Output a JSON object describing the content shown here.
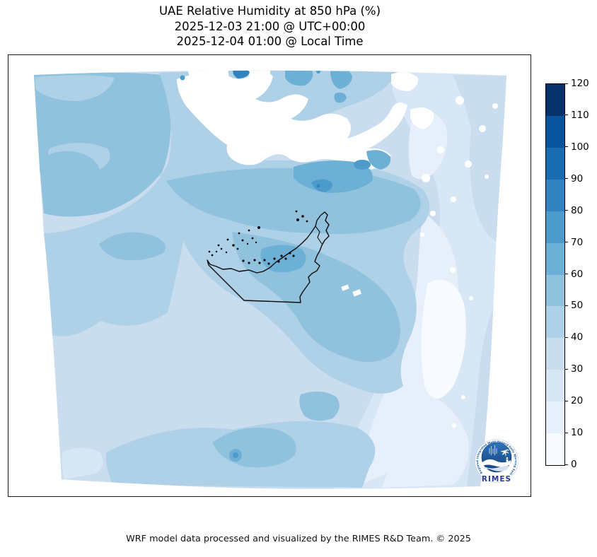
{
  "title": {
    "line1": "UAE Relative Humidity at 850 hPa (%)",
    "line2": "2025-12-03 21:00 @ UTC+00:00",
    "line3": "2025-12-04 01:00 @ Local Time"
  },
  "footer": {
    "text": "WRF model data processed and visualized by the RIMES R&D Team. © 2025"
  },
  "colorbar": {
    "min": 0,
    "max": 120,
    "step": 10,
    "ticks": [
      0,
      10,
      20,
      30,
      40,
      50,
      60,
      70,
      80,
      90,
      100,
      110,
      120
    ],
    "colors": [
      "#f7fbff",
      "#e7f0fa",
      "#d8e7f5",
      "#c9ddef",
      "#aed1e7",
      "#90c2de",
      "#6cb0d6",
      "#4d9bcb",
      "#3182be",
      "#1a6cb1",
      "#09539d",
      "#08306b"
    ]
  },
  "logo": {
    "ring_text": "Regional Integrated Multi-Hazard Early Warning System",
    "name": "RIMES",
    "primary_color": "#16549e",
    "text_color": "#2b3a96"
  },
  "chart_data": {
    "type": "heatmap",
    "subtype": "filled-contour-map",
    "title": "UAE Relative Humidity at 850 hPa (%)",
    "timestamp_utc": "2025-12-03 21:00 @ UTC+00:00",
    "timestamp_local": "2025-12-04 01:00 @ Local Time",
    "variable": "Relative Humidity",
    "pressure_level": "850 hPa",
    "units": "%",
    "model": "WRF",
    "colormap": "Blues",
    "contour_levels": [
      0,
      10,
      20,
      30,
      40,
      50,
      60,
      70,
      80,
      90,
      100,
      110,
      120
    ],
    "colorbar_range": [
      0,
      120
    ],
    "legend_position": "right",
    "map_overlay": "UAE national boundary with coastal islands",
    "estimated_region_values": [
      {
        "region": "Upper-left quadrant (Persian Gulf, northwest)",
        "rh_percent": "40-60"
      },
      {
        "region": "Iran interior highlands (top-center, white mass)",
        "rh_percent": "0-10"
      },
      {
        "region": "Iran south coast / Strait of Hormuz band",
        "rh_percent": "60-80"
      },
      {
        "region": "Small spot on top edge near center",
        "rh_percent": "80-90"
      },
      {
        "region": "Dubai / UAE north coast offshore patch",
        "rh_percent": "60-70"
      },
      {
        "region": "UAE interior and central band",
        "rh_percent": "40-60"
      },
      {
        "region": "East-central pale diagonal band (Oman desert)",
        "rh_percent": "0-20"
      },
      {
        "region": "Southwest quadrant (Saudi Arabia)",
        "rh_percent": "30-40"
      },
      {
        "region": "Bottom-center wet blobs",
        "rh_percent": "40-70"
      },
      {
        "region": "Far right edge strips",
        "rh_percent": "20-40"
      }
    ]
  }
}
